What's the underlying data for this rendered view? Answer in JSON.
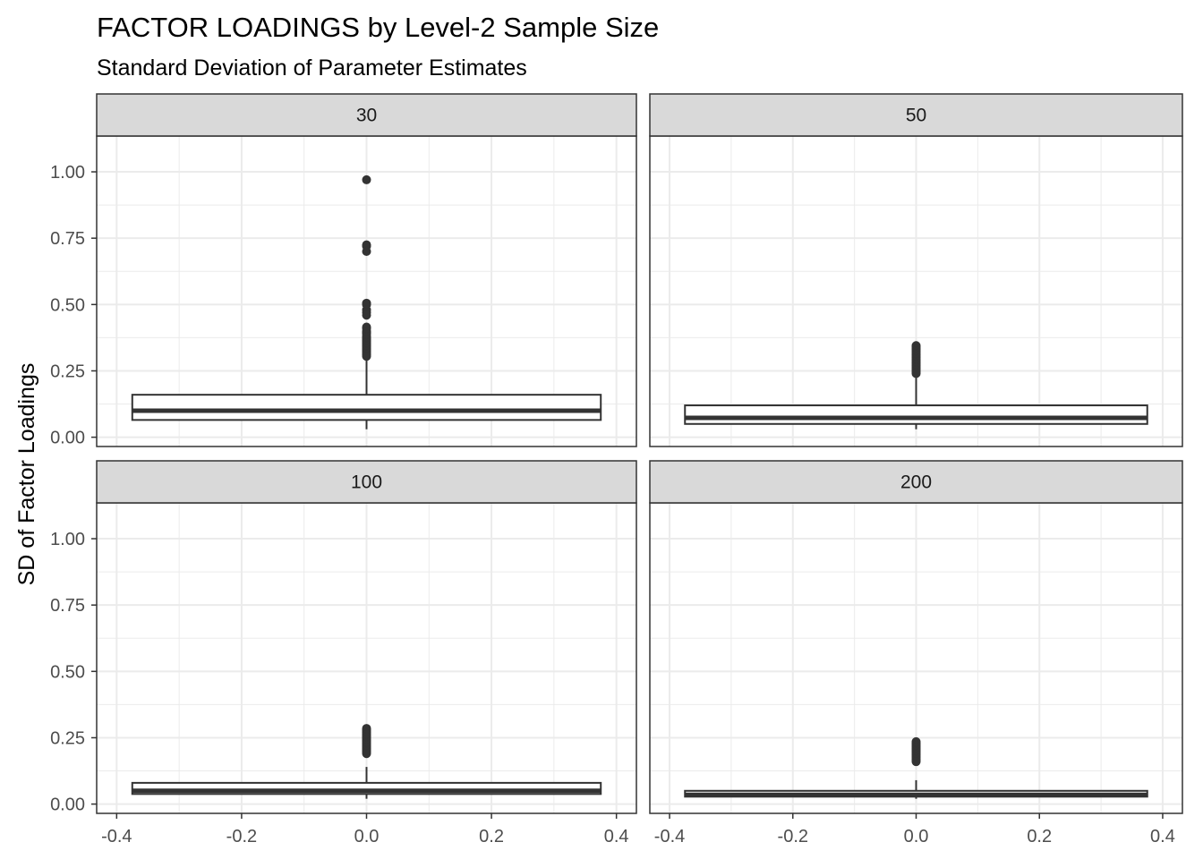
{
  "chart_data": {
    "type": "boxplot",
    "title": "FACTOR LOADINGS by Level-2 Sample Size",
    "subtitle": "Standard Deviation of Parameter Estimates",
    "ylabel": "SD of Factor Loadings",
    "xlabel": "",
    "xlim": [
      -0.4,
      0.4
    ],
    "ylim": [
      0,
      1.0
    ],
    "x_ticks": [
      "-0.4",
      "-0.2",
      "0.0",
      "0.2",
      "0.4"
    ],
    "y_ticks": [
      "0.00",
      "0.25",
      "0.50",
      "0.75",
      "1.00"
    ],
    "grid": true,
    "legend": "none",
    "colors": {
      "box_line": "#333333",
      "box_fill": "#ffffff",
      "strip_fill": "#d9d9d9",
      "grid": "#ebebeb",
      "panel_border": "#333333"
    },
    "panels": [
      {
        "label": "30",
        "whisker_low": 0.03,
        "q1": 0.065,
        "median": 0.1,
        "q3": 0.16,
        "whisker_high": 0.3,
        "outliers": [
          0.97,
          0.725,
          0.72,
          0.7,
          0.505,
          0.5,
          0.48,
          0.47,
          0.46,
          0.415,
          0.41,
          0.4,
          0.395,
          0.39,
          0.38,
          0.375,
          0.37,
          0.365,
          0.36,
          0.355,
          0.35,
          0.345,
          0.34,
          0.335,
          0.33,
          0.325,
          0.32,
          0.315,
          0.31,
          0.305
        ]
      },
      {
        "label": "50",
        "whisker_low": 0.03,
        "q1": 0.05,
        "median": 0.073,
        "q3": 0.12,
        "whisker_high": 0.23,
        "outliers": [
          0.345,
          0.34,
          0.335,
          0.33,
          0.325,
          0.32,
          0.315,
          0.31,
          0.305,
          0.3,
          0.295,
          0.29,
          0.285,
          0.28,
          0.275,
          0.27,
          0.265,
          0.26,
          0.255,
          0.25,
          0.245,
          0.24
        ]
      },
      {
        "label": "100",
        "whisker_low": 0.02,
        "q1": 0.038,
        "median": 0.05,
        "q3": 0.08,
        "whisker_high": 0.14,
        "outliers": [
          0.285,
          0.28,
          0.275,
          0.27,
          0.265,
          0.26,
          0.255,
          0.25,
          0.245,
          0.24,
          0.235,
          0.23,
          0.225,
          0.22,
          0.215,
          0.21,
          0.205,
          0.2,
          0.195,
          0.19
        ]
      },
      {
        "label": "200",
        "whisker_low": 0.02,
        "q1": 0.028,
        "median": 0.035,
        "q3": 0.05,
        "whisker_high": 0.09,
        "outliers": [
          0.235,
          0.23,
          0.225,
          0.22,
          0.215,
          0.21,
          0.205,
          0.2,
          0.195,
          0.19,
          0.185,
          0.18,
          0.175,
          0.17,
          0.165,
          0.16
        ]
      }
    ]
  }
}
